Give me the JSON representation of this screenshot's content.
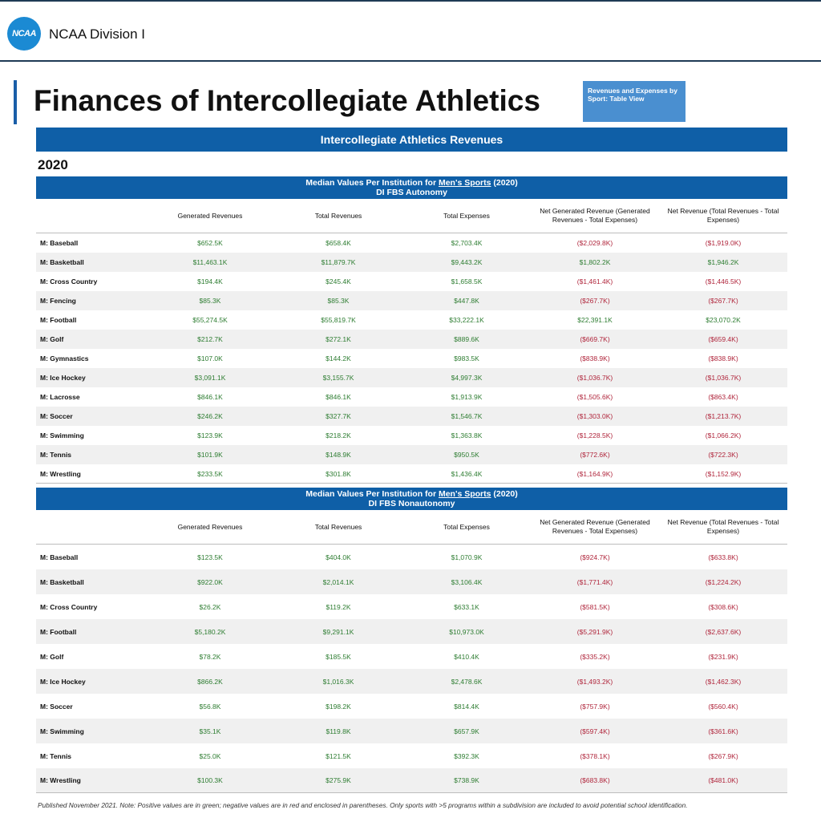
{
  "header": {
    "logo_text": "NCAA",
    "division": "NCAA Division I"
  },
  "page": {
    "title": "Finances of Intercollegiate Athletics",
    "view_button": "Revenues and Expenses by Sport: Table View",
    "section_banner": "Intercollegiate Athletics Revenues",
    "year": "2020"
  },
  "colors": {
    "banner": "#0f5fa7",
    "positive": "#2e7d32",
    "negative": "#b0263c"
  },
  "columns": [
    "",
    "Generated Revenues",
    "Total Revenues",
    "Total Expenses",
    "Net Generated Revenue (Generated Revenues - Total Expenses)",
    "Net Revenue (Total Revenues - Total Expenses)"
  ],
  "tables": [
    {
      "title_prefix": "Median Values Per Institution for ",
      "title_link": "Men's Sports",
      "title_suffix": " (2020)",
      "subtitle": "DI FBS Autonomy",
      "rows": [
        [
          "M: Baseball",
          "$652.5K",
          "$658.4K",
          "$2,703.4K",
          "($2,029.8K)",
          "($1,919.0K)"
        ],
        [
          "M: Basketball",
          "$11,463.1K",
          "$11,879.7K",
          "$9,443.2K",
          "$1,802.2K",
          "$1,946.2K"
        ],
        [
          "M: Cross Country",
          "$194.4K",
          "$245.4K",
          "$1,658.5K",
          "($1,461.4K)",
          "($1,446.5K)"
        ],
        [
          "M: Fencing",
          "$85.3K",
          "$85.3K",
          "$447.8K",
          "($267.7K)",
          "($267.7K)"
        ],
        [
          "M: Football",
          "$55,274.5K",
          "$55,819.7K",
          "$33,222.1K",
          "$22,391.1K",
          "$23,070.2K"
        ],
        [
          "M: Golf",
          "$212.7K",
          "$272.1K",
          "$889.6K",
          "($669.7K)",
          "($659.4K)"
        ],
        [
          "M: Gymnastics",
          "$107.0K",
          "$144.2K",
          "$983.5K",
          "($838.9K)",
          "($838.9K)"
        ],
        [
          "M: Ice Hockey",
          "$3,091.1K",
          "$3,155.7K",
          "$4,997.3K",
          "($1,036.7K)",
          "($1,036.7K)"
        ],
        [
          "M: Lacrosse",
          "$846.1K",
          "$846.1K",
          "$1,913.9K",
          "($1,505.6K)",
          "($863.4K)"
        ],
        [
          "M: Soccer",
          "$246.2K",
          "$327.7K",
          "$1,546.7K",
          "($1,303.0K)",
          "($1,213.7K)"
        ],
        [
          "M: Swimming",
          "$123.9K",
          "$218.2K",
          "$1,363.8K",
          "($1,228.5K)",
          "($1,066.2K)"
        ],
        [
          "M: Tennis",
          "$101.9K",
          "$148.9K",
          "$950.5K",
          "($772.6K)",
          "($722.3K)"
        ],
        [
          "M: Wrestling",
          "$233.5K",
          "$301.8K",
          "$1,436.4K",
          "($1,164.9K)",
          "($1,152.9K)"
        ]
      ]
    },
    {
      "title_prefix": "Median Values Per Institution for ",
      "title_link": "Men's Sports",
      "title_suffix": " (2020)",
      "subtitle": "DI FBS Nonautonomy",
      "rows": [
        [
          "M: Baseball",
          "$123.5K",
          "$404.0K",
          "$1,070.9K",
          "($924.7K)",
          "($633.8K)"
        ],
        [
          "M: Basketball",
          "$922.0K",
          "$2,014.1K",
          "$3,106.4K",
          "($1,771.4K)",
          "($1,224.2K)"
        ],
        [
          "M: Cross Country",
          "$26.2K",
          "$119.2K",
          "$633.1K",
          "($581.5K)",
          "($308.6K)"
        ],
        [
          "M: Football",
          "$5,180.2K",
          "$9,291.1K",
          "$10,973.0K",
          "($5,291.9K)",
          "($2,637.6K)"
        ],
        [
          "M: Golf",
          "$78.2K",
          "$185.5K",
          "$410.4K",
          "($335.2K)",
          "($231.9K)"
        ],
        [
          "M: Ice Hockey",
          "$866.2K",
          "$1,016.3K",
          "$2,478.6K",
          "($1,493.2K)",
          "($1,462.3K)"
        ],
        [
          "M: Soccer",
          "$56.8K",
          "$198.2K",
          "$814.4K",
          "($757.9K)",
          "($560.4K)"
        ],
        [
          "M: Swimming",
          "$35.1K",
          "$119.8K",
          "$657.9K",
          "($597.4K)",
          "($361.6K)"
        ],
        [
          "M: Tennis",
          "$25.0K",
          "$121.5K",
          "$392.3K",
          "($378.1K)",
          "($267.9K)"
        ],
        [
          "M: Wrestling",
          "$100.3K",
          "$275.9K",
          "$738.9K",
          "($683.8K)",
          "($481.0K)"
        ]
      ]
    }
  ],
  "footnote": "Published November 2021. Note: Positive values are in green; negative values are in red and enclosed in parentheses. Only sports with >5 programs within a subdivision are included to avoid potential school identification."
}
